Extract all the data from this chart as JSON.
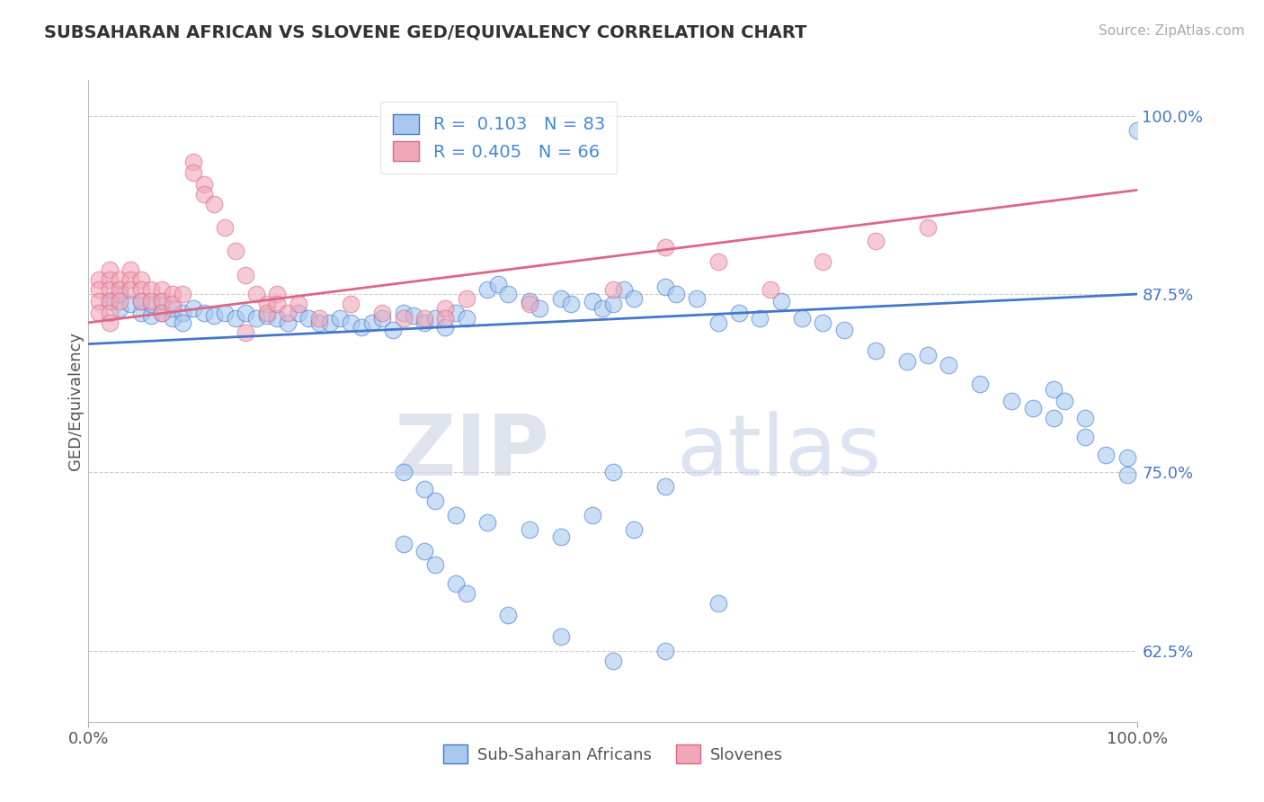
{
  "title": "SUBSAHARAN AFRICAN VS SLOVENE GED/EQUIVALENCY CORRELATION CHART",
  "source": "Source: ZipAtlas.com",
  "ylabel": "GED/Equivalency",
  "xlim": [
    0.0,
    1.0
  ],
  "ylim": [
    0.575,
    1.025
  ],
  "yticks": [
    0.625,
    0.75,
    0.875,
    1.0
  ],
  "ytick_labels": [
    "62.5%",
    "75.0%",
    "87.5%",
    "100.0%"
  ],
  "blue_color": "#a8c8f0",
  "pink_color": "#f0a8b8",
  "blue_line_color": "#4477cc",
  "pink_line_color": "#dd6688",
  "blue_scatter": [
    [
      0.02,
      0.87
    ],
    [
      0.03,
      0.865
    ],
    [
      0.03,
      0.875
    ],
    [
      0.04,
      0.868
    ],
    [
      0.05,
      0.862
    ],
    [
      0.05,
      0.87
    ],
    [
      0.06,
      0.86
    ],
    [
      0.06,
      0.868
    ],
    [
      0.07,
      0.862
    ],
    [
      0.07,
      0.87
    ],
    [
      0.08,
      0.858
    ],
    [
      0.08,
      0.865
    ],
    [
      0.09,
      0.862
    ],
    [
      0.09,
      0.855
    ],
    [
      0.1,
      0.865
    ],
    [
      0.11,
      0.862
    ],
    [
      0.12,
      0.86
    ],
    [
      0.13,
      0.862
    ],
    [
      0.14,
      0.858
    ],
    [
      0.15,
      0.862
    ],
    [
      0.16,
      0.858
    ],
    [
      0.17,
      0.86
    ],
    [
      0.18,
      0.858
    ],
    [
      0.19,
      0.855
    ],
    [
      0.2,
      0.862
    ],
    [
      0.21,
      0.858
    ],
    [
      0.22,
      0.855
    ],
    [
      0.23,
      0.855
    ],
    [
      0.24,
      0.858
    ],
    [
      0.25,
      0.855
    ],
    [
      0.26,
      0.852
    ],
    [
      0.27,
      0.855
    ],
    [
      0.28,
      0.858
    ],
    [
      0.29,
      0.85
    ],
    [
      0.3,
      0.862
    ],
    [
      0.31,
      0.86
    ],
    [
      0.32,
      0.855
    ],
    [
      0.33,
      0.858
    ],
    [
      0.34,
      0.852
    ],
    [
      0.35,
      0.862
    ],
    [
      0.36,
      0.858
    ],
    [
      0.38,
      0.878
    ],
    [
      0.39,
      0.882
    ],
    [
      0.4,
      0.875
    ],
    [
      0.42,
      0.87
    ],
    [
      0.43,
      0.865
    ],
    [
      0.45,
      0.872
    ],
    [
      0.46,
      0.868
    ],
    [
      0.48,
      0.87
    ],
    [
      0.49,
      0.865
    ],
    [
      0.5,
      0.868
    ],
    [
      0.51,
      0.878
    ],
    [
      0.52,
      0.872
    ],
    [
      0.55,
      0.88
    ],
    [
      0.56,
      0.875
    ],
    [
      0.58,
      0.872
    ],
    [
      0.6,
      0.855
    ],
    [
      0.62,
      0.862
    ],
    [
      0.64,
      0.858
    ],
    [
      0.66,
      0.87
    ],
    [
      0.68,
      0.858
    ],
    [
      0.7,
      0.855
    ],
    [
      0.72,
      0.85
    ],
    [
      0.75,
      0.835
    ],
    [
      0.78,
      0.828
    ],
    [
      0.8,
      0.832
    ],
    [
      0.82,
      0.825
    ],
    [
      0.85,
      0.812
    ],
    [
      0.88,
      0.8
    ],
    [
      0.9,
      0.795
    ],
    [
      0.92,
      0.788
    ],
    [
      0.95,
      0.775
    ],
    [
      0.97,
      0.762
    ],
    [
      0.99,
      0.748
    ],
    [
      0.5,
      0.618
    ],
    [
      0.4,
      0.65
    ],
    [
      0.45,
      0.635
    ],
    [
      0.3,
      0.7
    ],
    [
      0.32,
      0.695
    ],
    [
      0.33,
      0.685
    ],
    [
      0.35,
      0.672
    ],
    [
      0.36,
      0.665
    ],
    [
      0.55,
      0.625
    ],
    [
      0.6,
      0.658
    ],
    [
      0.5,
      0.75
    ],
    [
      0.55,
      0.74
    ],
    [
      0.3,
      0.75
    ],
    [
      0.32,
      0.738
    ],
    [
      0.33,
      0.73
    ],
    [
      0.35,
      0.72
    ],
    [
      0.38,
      0.715
    ],
    [
      0.42,
      0.71
    ],
    [
      0.45,
      0.705
    ],
    [
      0.48,
      0.72
    ],
    [
      0.52,
      0.71
    ],
    [
      0.92,
      0.808
    ],
    [
      0.93,
      0.8
    ],
    [
      0.95,
      0.788
    ],
    [
      0.99,
      0.76
    ],
    [
      1.0,
      0.99
    ]
  ],
  "pink_scatter": [
    [
      0.01,
      0.885
    ],
    [
      0.01,
      0.878
    ],
    [
      0.01,
      0.87
    ],
    [
      0.01,
      0.862
    ],
    [
      0.02,
      0.892
    ],
    [
      0.02,
      0.885
    ],
    [
      0.02,
      0.878
    ],
    [
      0.02,
      0.87
    ],
    [
      0.02,
      0.862
    ],
    [
      0.02,
      0.855
    ],
    [
      0.03,
      0.885
    ],
    [
      0.03,
      0.878
    ],
    [
      0.03,
      0.87
    ],
    [
      0.04,
      0.892
    ],
    [
      0.04,
      0.885
    ],
    [
      0.04,
      0.878
    ],
    [
      0.05,
      0.885
    ],
    [
      0.05,
      0.878
    ],
    [
      0.05,
      0.87
    ],
    [
      0.06,
      0.878
    ],
    [
      0.06,
      0.87
    ],
    [
      0.07,
      0.878
    ],
    [
      0.07,
      0.87
    ],
    [
      0.07,
      0.862
    ],
    [
      0.08,
      0.875
    ],
    [
      0.08,
      0.868
    ],
    [
      0.09,
      0.875
    ],
    [
      0.1,
      0.968
    ],
    [
      0.1,
      0.96
    ],
    [
      0.11,
      0.952
    ],
    [
      0.11,
      0.945
    ],
    [
      0.12,
      0.938
    ],
    [
      0.13,
      0.922
    ],
    [
      0.14,
      0.905
    ],
    [
      0.15,
      0.888
    ],
    [
      0.15,
      0.848
    ],
    [
      0.16,
      0.875
    ],
    [
      0.17,
      0.868
    ],
    [
      0.17,
      0.862
    ],
    [
      0.18,
      0.875
    ],
    [
      0.18,
      0.868
    ],
    [
      0.19,
      0.862
    ],
    [
      0.2,
      0.868
    ],
    [
      0.22,
      0.858
    ],
    [
      0.25,
      0.868
    ],
    [
      0.28,
      0.862
    ],
    [
      0.3,
      0.858
    ],
    [
      0.32,
      0.858
    ],
    [
      0.34,
      0.865
    ],
    [
      0.34,
      0.858
    ],
    [
      0.36,
      0.872
    ],
    [
      0.42,
      0.868
    ],
    [
      0.5,
      0.878
    ],
    [
      0.55,
      0.908
    ],
    [
      0.6,
      0.898
    ],
    [
      0.65,
      0.878
    ],
    [
      0.7,
      0.898
    ],
    [
      0.75,
      0.912
    ],
    [
      0.8,
      0.922
    ]
  ],
  "blue_line_x": [
    0.0,
    1.0
  ],
  "blue_line_y": [
    0.84,
    0.875
  ],
  "pink_line_x": [
    0.0,
    1.0
  ],
  "pink_line_y": [
    0.855,
    0.948
  ],
  "watermark_zip": "ZIP",
  "watermark_atlas": "atlas",
  "bg_color": "#ffffff",
  "grid_color": "#cccccc"
}
